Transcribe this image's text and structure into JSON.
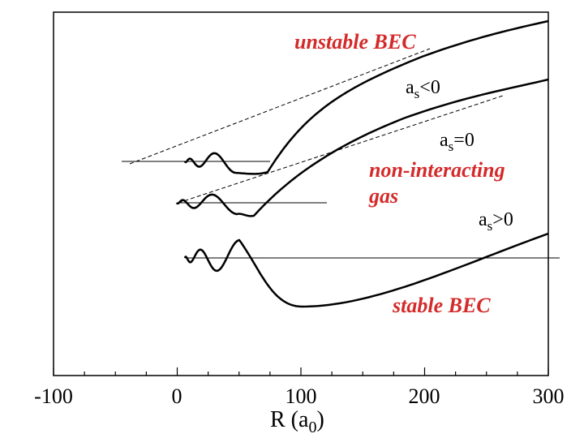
{
  "chart_data": {
    "type": "line",
    "xlabel_main": "R (a",
    "xlabel_sub": "0",
    "xlabel_close": ")",
    "ylabel": "",
    "xlim": [
      -100,
      300
    ],
    "x_ticks": [
      "-100",
      "0",
      "100",
      "200",
      "300"
    ],
    "x_tick_values": [
      -100,
      0,
      100,
      200,
      300
    ],
    "annotation_color": "#d42a2a",
    "annotations": {
      "unstable": "unstable BEC",
      "noninteracting_1": "non-interacting",
      "noninteracting_2": "gas",
      "stable": "stable BEC"
    },
    "series": [
      {
        "label_main": "a",
        "label_sub": "s",
        "label_rel": "<0"
      },
      {
        "label_main": "a",
        "label_sub": "s",
        "label_rel": "=0"
      },
      {
        "label_main": "a",
        "label_sub": "s",
        "label_rel": ">0"
      }
    ]
  }
}
